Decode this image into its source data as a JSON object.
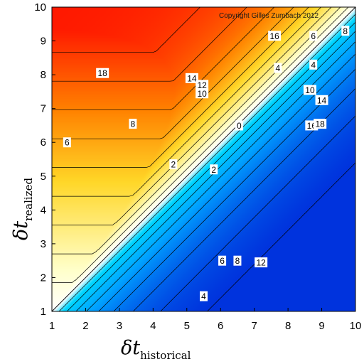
{
  "chart_data": {
    "type": "heatmap",
    "subtype": "filled contour map with labelled contour lines",
    "copyright": "Copyright Gilles Zumbach 2012",
    "x_axis": {
      "symbol": "δt",
      "subscript": "historical",
      "range": [
        1,
        10
      ],
      "ticks": [
        "1",
        "2",
        "3",
        "4",
        "5",
        "6",
        "7",
        "8",
        "9",
        "10"
      ]
    },
    "y_axis": {
      "symbol": "δt",
      "subscript": "realized",
      "range": [
        1,
        10
      ],
      "ticks": [
        "1",
        "2",
        "3",
        "4",
        "5",
        "6",
        "7",
        "8",
        "9",
        "10"
      ]
    },
    "colorscale": [
      "#0033dd",
      "#00c8ff",
      "#dff8ff",
      "#ffffff",
      "#ffffd0",
      "#ffd000",
      "#ff2000"
    ],
    "value_range": [
      -18,
      20
    ],
    "contour_levels": [
      -18,
      -16,
      -14,
      -12,
      -10,
      -8,
      -6,
      -4,
      -2,
      0,
      2,
      4,
      6,
      8,
      10,
      12,
      14,
      16,
      18
    ],
    "diagonal_reference_line": true,
    "contour_labels": [
      {
        "text": "18",
        "x": 2.5,
        "y": 8.05
      },
      {
        "text": "16",
        "x": 7.6,
        "y": 9.15
      },
      {
        "text": "6",
        "x": 8.75,
        "y": 9.15
      },
      {
        "text": "8",
        "x": 9.7,
        "y": 9.3
      },
      {
        "text": "14",
        "x": 5.15,
        "y": 7.9
      },
      {
        "text": "12",
        "x": 5.45,
        "y": 7.7
      },
      {
        "text": "10",
        "x": 5.45,
        "y": 7.45
      },
      {
        "text": "8",
        "x": 3.4,
        "y": 6.55
      },
      {
        "text": "6",
        "x": 1.45,
        "y": 6.0
      },
      {
        "text": "2",
        "x": 4.6,
        "y": 5.35
      },
      {
        "text": "4",
        "x": 7.7,
        "y": 8.2
      },
      {
        "text": "4",
        "x": 8.75,
        "y": 8.3
      },
      {
        "text": "0",
        "x": 6.55,
        "y": 6.5
      },
      {
        "text": "2",
        "x": 5.8,
        "y": 5.2
      },
      {
        "text": "10",
        "x": 8.65,
        "y": 7.55
      },
      {
        "text": "14",
        "x": 9.0,
        "y": 7.25
      },
      {
        "text": "16",
        "x": 8.7,
        "y": 6.5
      },
      {
        "text": "18",
        "x": 8.95,
        "y": 6.55
      },
      {
        "text": "6",
        "x": 6.05,
        "y": 2.5
      },
      {
        "text": "8",
        "x": 6.5,
        "y": 2.5
      },
      {
        "text": "12",
        "x": 7.2,
        "y": 2.45
      },
      {
        "text": "4",
        "x": 5.5,
        "y": 1.45
      }
    ],
    "grid": false,
    "legend": "none"
  }
}
